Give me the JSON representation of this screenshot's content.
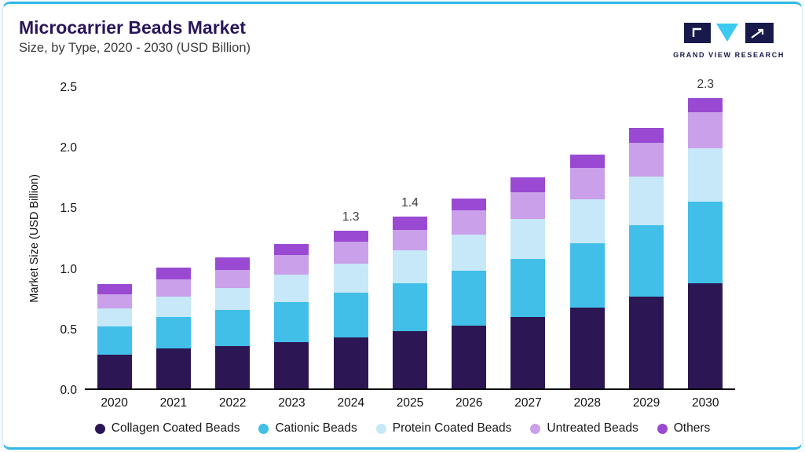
{
  "header": {
    "title": "Microcarrier Beads Market",
    "subtitle": "Size, by Type, 2020 - 2030 (USD Billion)"
  },
  "logo": {
    "text": "GRAND VIEW RESEARCH",
    "dark_color": "#171a4a",
    "accent_color": "#3cc9f2"
  },
  "chart_data": {
    "type": "bar",
    "stacked": true,
    "title": "Microcarrier Beads Market Size, by Type, 2020 - 2030 (USD Billion)",
    "xlabel": "",
    "ylabel": "Market Size (USD Billion)",
    "ylim": [
      0,
      2.5
    ],
    "yticks": [
      "0.0",
      "0.5",
      "1.0",
      "1.5",
      "2.0",
      "2.5"
    ],
    "grid": false,
    "legend_position": "bottom",
    "categories": [
      "2020",
      "2021",
      "2022",
      "2023",
      "2024",
      "2025",
      "2026",
      "2027",
      "2028",
      "2029",
      "2030"
    ],
    "series": [
      {
        "name": "Collagen Coated Beads",
        "color": "#2d1654",
        "values": [
          0.28,
          0.33,
          0.35,
          0.38,
          0.42,
          0.47,
          0.52,
          0.59,
          0.67,
          0.76,
          0.87
        ]
      },
      {
        "name": "Cationic Beads",
        "color": "#41bfe8",
        "values": [
          0.23,
          0.26,
          0.3,
          0.33,
          0.37,
          0.4,
          0.45,
          0.48,
          0.53,
          0.59,
          0.67
        ]
      },
      {
        "name": "Protein Coated Beads",
        "color": "#c6e8f8",
        "values": [
          0.15,
          0.17,
          0.18,
          0.23,
          0.24,
          0.27,
          0.3,
          0.33,
          0.36,
          0.4,
          0.44
        ]
      },
      {
        "name": "Untreated Beads",
        "color": "#c9a0e9",
        "values": [
          0.12,
          0.14,
          0.15,
          0.16,
          0.18,
          0.17,
          0.2,
          0.22,
          0.26,
          0.28,
          0.3
        ]
      },
      {
        "name": "Others",
        "color": "#9a4ad2",
        "values": [
          0.08,
          0.1,
          0.1,
          0.09,
          0.09,
          0.11,
          0.1,
          0.12,
          0.11,
          0.12,
          0.12
        ]
      }
    ],
    "bar_labels": {
      "2024": "1.3",
      "2025": "1.4",
      "2030": "2.3"
    }
  }
}
